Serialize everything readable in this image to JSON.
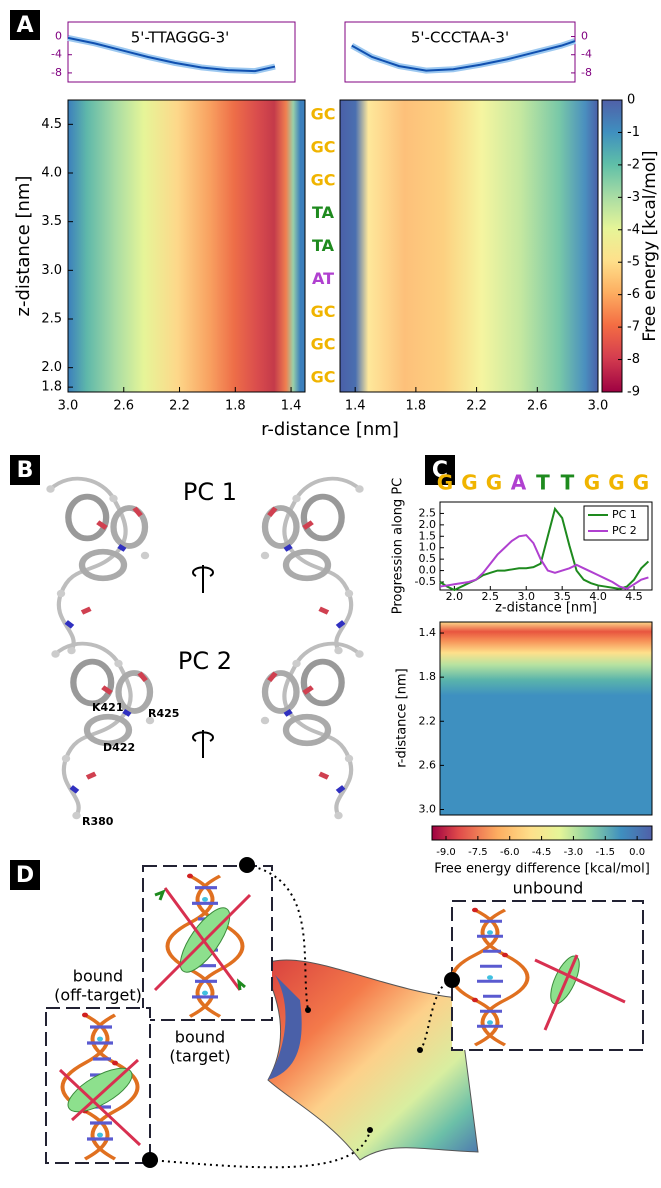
{
  "panel_a": {
    "label": "A",
    "profile_titles": [
      "5'-TTAGGG-3'",
      "5'-CCCTAA-3'"
    ],
    "profile_yticks": [
      0,
      -4,
      -8
    ],
    "profile_ylim": [
      -10,
      3.2
    ],
    "profiles": [
      {
        "r": [
          3.0,
          2.8,
          2.6,
          2.4,
          2.2,
          2.0,
          1.8,
          1.6,
          1.45
        ],
        "values": [
          -0.3,
          -1.5,
          -3,
          -4.5,
          -5.8,
          -6.8,
          -7.4,
          -7.6,
          -6.6
        ]
      },
      {
        "r": [
          1.35,
          1.5,
          1.7,
          1.9,
          2.1,
          2.3,
          2.5,
          2.7,
          2.9,
          3.0
        ],
        "values": [
          -2,
          -4.5,
          -6.5,
          -7.5,
          -7.2,
          -6.2,
          -5,
          -3.5,
          -2,
          -1
        ]
      }
    ],
    "zlim": [
      1.75,
      4.75
    ],
    "rlim": [
      1.3,
      3.0
    ],
    "zticks": [
      1.8,
      {
        "value": 2,
        "label": "2.0"
      },
      2.5,
      {
        "value": 3,
        "label": "3.0"
      },
      3.5,
      {
        "value": 4,
        "label": "4.0"
      },
      4.5
    ],
    "rticks_left": [
      {
        "value": 3,
        "label": "3.0"
      },
      2.6,
      2.2,
      1.8,
      1.4
    ],
    "rticks_right": [
      1.4,
      1.8,
      2.2,
      2.6,
      {
        "value": 3,
        "label": "3.0"
      }
    ],
    "xlabel": "r-distance [nm]",
    "ylabel": "z-distance [nm]",
    "base_pairs": [
      {
        "text": "GC",
        "color": "#f0b400"
      },
      {
        "text": "GC",
        "color": "#f0b400"
      },
      {
        "text": "GC",
        "color": "#f0b400"
      },
      {
        "text": "TA",
        "color": "#1e8a1e"
      },
      {
        "text": "TA",
        "color": "#1e8a1e"
      },
      {
        "text": "AT",
        "color": "#b040d0"
      },
      {
        "text": "GC",
        "color": "#f0b400"
      },
      {
        "text": "GC",
        "color": "#f0b400"
      },
      {
        "text": "GC",
        "color": "#f0b400"
      }
    ],
    "colorbar_ticks": [
      0,
      -1,
      -2,
      -3,
      -4,
      -5,
      -6,
      -7,
      -8,
      -9
    ],
    "colorbar_label": "Free energy [kcal/mol]"
  },
  "panel_b": {
    "label": "B",
    "pc_titles": [
      "PC 1",
      "PC 2"
    ],
    "residues": [
      "K421",
      "D422",
      "R425",
      "R380"
    ]
  },
  "panel_c": {
    "label": "C",
    "type": "line",
    "sequence": [
      {
        "text": "G",
        "color": "#f0b400"
      },
      {
        "text": "G",
        "color": "#f0b400"
      },
      {
        "text": "G",
        "color": "#f0b400"
      },
      {
        "text": "A",
        "color": "#b040d0"
      },
      {
        "text": "T",
        "color": "#1e8a1e"
      },
      {
        "text": "T",
        "color": "#1e8a1e"
      },
      {
        "text": "G",
        "color": "#f0b400"
      },
      {
        "text": "G",
        "color": "#f0b400"
      },
      {
        "text": "G",
        "color": "#f0b400"
      }
    ],
    "x": [
      1.8,
      1.9,
      2.0,
      2.1,
      2.2,
      2.3,
      2.4,
      2.5,
      2.6,
      2.7,
      2.8,
      2.9,
      3.0,
      3.1,
      3.2,
      3.3,
      3.4,
      3.5,
      3.6,
      3.7,
      3.8,
      3.9,
      4.0,
      4.1,
      4.2,
      4.3,
      4.4,
      4.5,
      4.6,
      4.7
    ],
    "series": [
      {
        "name": "PC 1",
        "color": "#1e8a1e",
        "values": [
          -0.5,
          -0.7,
          -0.85,
          -0.7,
          -0.55,
          -0.4,
          -0.2,
          -0.1,
          0.0,
          0.0,
          0.05,
          0.1,
          0.1,
          0.15,
          0.3,
          1.5,
          2.7,
          2.3,
          1.1,
          0.0,
          -0.4,
          -0.55,
          -0.65,
          -0.7,
          -0.75,
          -0.8,
          -0.7,
          -0.4,
          0.1,
          0.4
        ]
      },
      {
        "name": "PC 2",
        "color": "#b040d0",
        "values": [
          -0.7,
          -0.65,
          -0.6,
          -0.55,
          -0.5,
          -0.4,
          -0.1,
          0.3,
          0.7,
          1.0,
          1.3,
          1.5,
          1.55,
          1.2,
          0.5,
          0.0,
          -0.1,
          0.0,
          0.1,
          0.25,
          0.1,
          -0.05,
          -0.2,
          -0.35,
          -0.5,
          -0.7,
          -0.8,
          -0.6,
          -0.4,
          -0.3
        ]
      }
    ],
    "xlim": [
      1.8,
      4.75
    ],
    "ylim": [
      -0.85,
      3.0
    ],
    "xticks": [
      {
        "value": 2,
        "label": "2.0"
      },
      2.5,
      {
        "value": 3,
        "label": "3.0"
      },
      3.5,
      {
        "value": 4,
        "label": "4.0"
      },
      4.5
    ],
    "yticks": [
      -0.5,
      {
        "value": 0,
        "label": "0.0"
      },
      0.5,
      {
        "value": 1,
        "label": "1.0"
      },
      1.5,
      {
        "value": 2,
        "label": "2.0"
      },
      2.5
    ],
    "xlabel": "z-distance [nm]",
    "ylabel": "Progression along PC",
    "legend": "upper right",
    "heatmap_rlim": [
      1.3,
      3.05
    ],
    "heatmap_yticks": [
      1.4,
      1.8,
      2.2,
      2.6,
      {
        "value": 3,
        "label": "3.0"
      }
    ],
    "heatmap_ylabel": "r-distance [nm]",
    "colorbar_lim": [
      -9.66,
      0.7
    ],
    "colorbar_ticks": [
      {
        "value": -9,
        "label": "-9.0"
      },
      -7.5,
      {
        "value": -6,
        "label": "-6.0"
      },
      -4.5,
      {
        "value": -3,
        "label": "-3.0"
      },
      -1.5,
      {
        "value": 0,
        "label": "0.0"
      }
    ],
    "colorbar_label": "Free energy difference [kcal/mol]"
  },
  "panel_d": {
    "label": "D",
    "target": [
      "bound",
      "(target)"
    ],
    "off_target": [
      "bound",
      "(off-target)"
    ],
    "unbound": "unbound"
  }
}
